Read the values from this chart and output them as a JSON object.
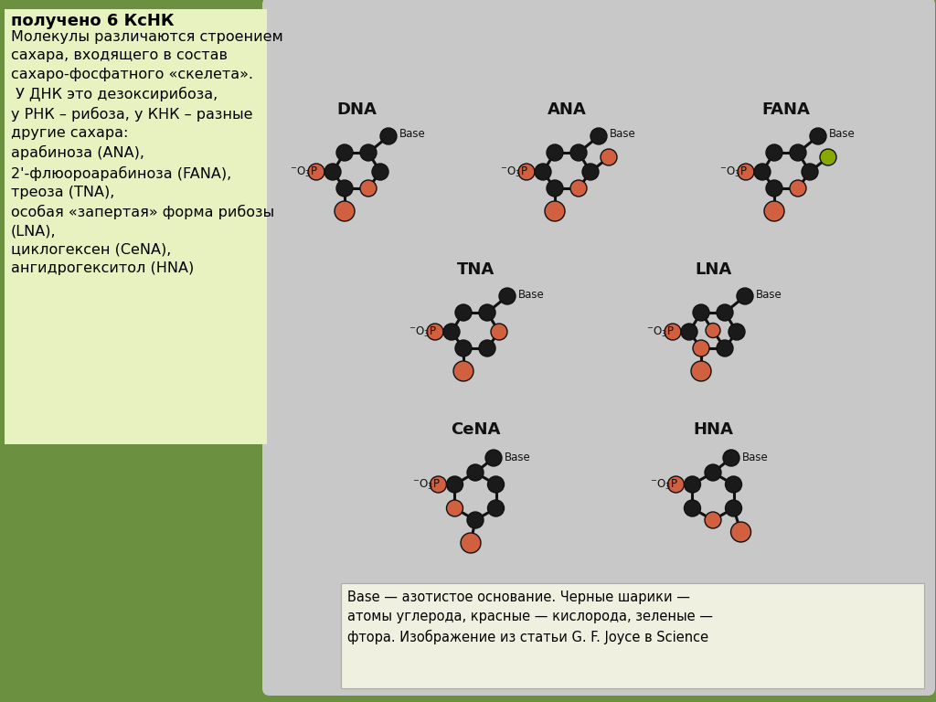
{
  "bg_color": "#6a9040",
  "panel_bg": "#c8c8c8",
  "left_box_bg": "#e8f2c0",
  "caption_box_bg": "#f0f0e0",
  "left_box_text_bold": "получено 6 КсНК",
  "left_box_text_normal": "Молекулы различаются строением\nсахара, входящего в состав\nсахаро-фосфатного «скелета».\n У ДНК это дезоксирибоза,\nу РНК – рибоза, у КНК – разные\nдругие сахара:\nарабиноза (ANA),\n2'-флюороарабиноза (FANA),\nтреоза (TNA),\nособая «запертая» форма рибозы\n(LNA),\nциклогексен (CeNA),\nангидрогекситол (HNA)",
  "caption_text": "Base — азотистое основание. Черные шарики —\nатомы углерода, красные — кислорода, зеленые —\nфтора. Изображение из статьи G. F. Joyce в Science",
  "black_color": "#1a1a1a",
  "red_color": "#d06040",
  "green_color": "#88aa00"
}
